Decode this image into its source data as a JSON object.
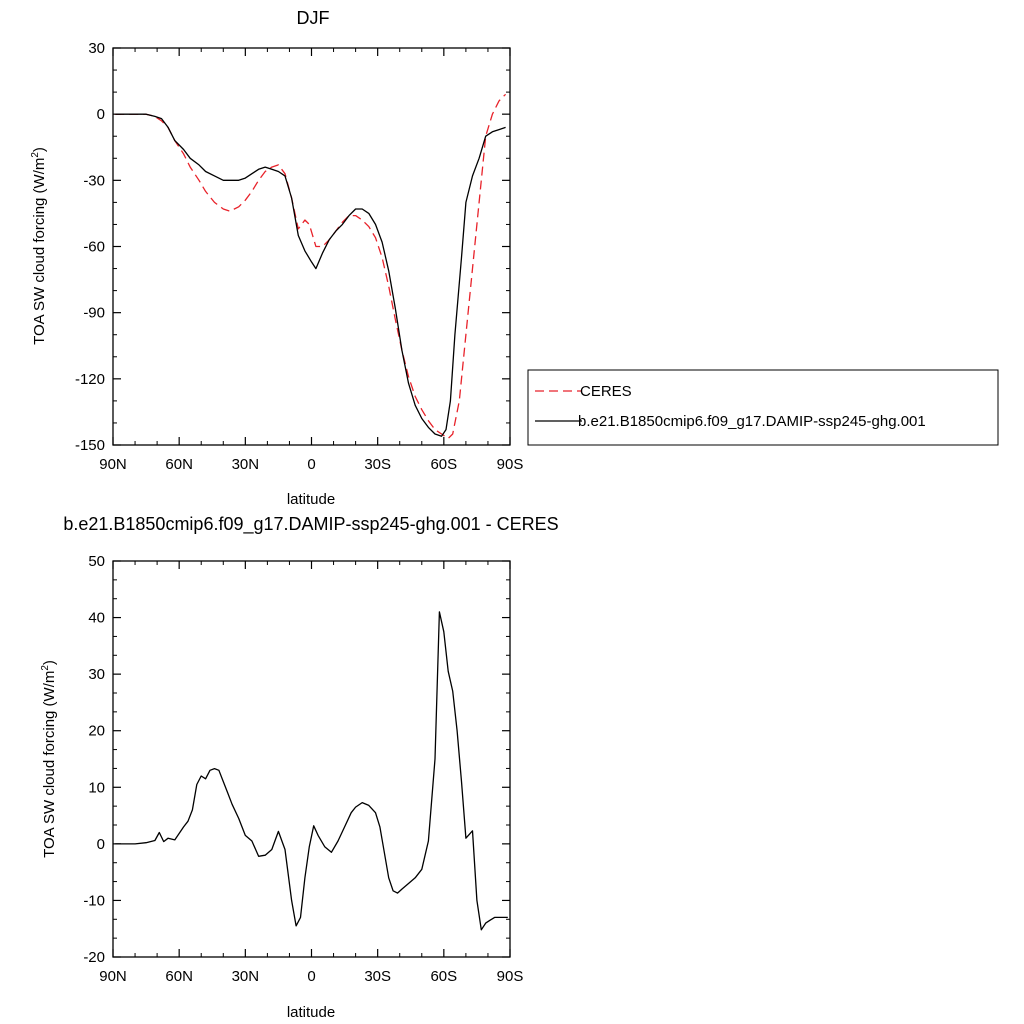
{
  "chart_data": [
    {
      "type": "line",
      "title": "DJF",
      "xlabel": "latitude",
      "ylabel": "TOA SW cloud forcing (W/m",
      "ylabel_sup": "2",
      "ylabel_end": ")",
      "xlim": [
        -90,
        90
      ],
      "ylim": [
        -150,
        30
      ],
      "x_ticks": [
        -90,
        -60,
        -30,
        0,
        30,
        60,
        90
      ],
      "x_tick_labels": [
        "90N",
        "60N",
        "30N",
        "0",
        "30S",
        "60S",
        "90S"
      ],
      "y_ticks": [
        30,
        0,
        -30,
        -60,
        -90,
        -120,
        -150
      ],
      "y_tick_labels": [
        "30",
        "0",
        "-30",
        "-60",
        "-90",
        "-120",
        "-150"
      ],
      "legend_position": "right",
      "series": [
        {
          "name": "CERES",
          "color": "#e8222a",
          "dash": "dashed",
          "x": [
            -89,
            -85,
            -80,
            -75,
            -71,
            -68,
            -65,
            -62,
            -58,
            -55,
            -51,
            -48,
            -44,
            -40,
            -37,
            -33,
            -30,
            -27,
            -24,
            -21,
            -18,
            -15,
            -12,
            -9,
            -6,
            -3,
            -1,
            2,
            5,
            8,
            11,
            14,
            17,
            20,
            23,
            26,
            29,
            32,
            35,
            38,
            41,
            44,
            47,
            50,
            53,
            56,
            59,
            62,
            64,
            67,
            70,
            73,
            76,
            79,
            82,
            85,
            88
          ],
          "y": [
            0,
            0,
            0,
            0,
            -1,
            -3,
            -6,
            -12,
            -18,
            -24,
            -30,
            -35,
            -40,
            -43,
            -44,
            -42,
            -39,
            -35,
            -30,
            -26,
            -24,
            -23,
            -27,
            -38,
            -52,
            -48,
            -50,
            -60,
            -60,
            -57,
            -53,
            -49,
            -46,
            -46,
            -48,
            -51,
            -56,
            -65,
            -78,
            -93,
            -107,
            -119,
            -128,
            -134,
            -139,
            -143,
            -145,
            -147,
            -145,
            -130,
            -100,
            -70,
            -40,
            -10,
            0,
            6,
            9
          ]
        },
        {
          "name": "b.e21.B1850cmip6.f09_g17.DAMIP-ssp245-ghg.001",
          "color": "#000000",
          "dash": "solid",
          "x": [
            -89,
            -85,
            -80,
            -75,
            -71,
            -68,
            -65,
            -62,
            -58,
            -55,
            -51,
            -48,
            -44,
            -40,
            -37,
            -33,
            -30,
            -27,
            -24,
            -21,
            -18,
            -15,
            -12,
            -9,
            -6,
            -3,
            0,
            2,
            5,
            8,
            11,
            14,
            17,
            20,
            23,
            26,
            29,
            32,
            35,
            38,
            41,
            44,
            47,
            50,
            53,
            56,
            59,
            61,
            63,
            65,
            68,
            70,
            73,
            76,
            79,
            82,
            85,
            88
          ],
          "y": [
            0,
            0,
            0,
            0,
            -1,
            -2,
            -6,
            -12,
            -16,
            -20,
            -23,
            -26,
            -28,
            -30,
            -30,
            -30,
            -29,
            -27,
            -25,
            -24,
            -25,
            -26,
            -28,
            -38,
            -55,
            -62,
            -67,
            -70,
            -63,
            -57,
            -53,
            -50,
            -46,
            -43,
            -43,
            -45,
            -50,
            -58,
            -71,
            -88,
            -107,
            -122,
            -132,
            -138,
            -142,
            -145,
            -146,
            -143,
            -130,
            -100,
            -65,
            -40,
            -28,
            -20,
            -10,
            -8,
            -7,
            -6
          ]
        }
      ]
    },
    {
      "type": "line",
      "title": "b.e21.B1850cmip6.f09_g17.DAMIP-ssp245-ghg.001 - CERES",
      "xlabel": "latitude",
      "ylabel": "TOA SW cloud forcing (W/m",
      "ylabel_sup": "2",
      "ylabel_end": ")",
      "xlim": [
        -90,
        90
      ],
      "ylim": [
        -20,
        50
      ],
      "x_ticks": [
        -90,
        -60,
        -30,
        0,
        30,
        60,
        90
      ],
      "x_tick_labels": [
        "90N",
        "60N",
        "30N",
        "0",
        "30S",
        "60S",
        "90S"
      ],
      "y_ticks": [
        50,
        40,
        30,
        20,
        10,
        0,
        -10,
        -20
      ],
      "y_tick_labels": [
        "50",
        "40",
        "30",
        "20",
        "10",
        "0",
        "-10",
        "-20"
      ],
      "series": [
        {
          "color": "#000000",
          "dash": "solid",
          "x": [
            -89,
            -85,
            -80,
            -75,
            -71,
            -69,
            -67,
            -65,
            -62,
            -58,
            -56,
            -54,
            -52,
            -50,
            -48,
            -46,
            -44,
            -42,
            -40,
            -38,
            -36,
            -33,
            -30,
            -27,
            -24,
            -21,
            -18,
            -15,
            -12,
            -9,
            -7,
            -5,
            -3,
            -1,
            1,
            3,
            6,
            9,
            12,
            15,
            18,
            20,
            23,
            26,
            29,
            31,
            33,
            35,
            37,
            39,
            41,
            44,
            47,
            50,
            53,
            56,
            58,
            60,
            62,
            64,
            66,
            68,
            70,
            73,
            75,
            77,
            79,
            81,
            83,
            85,
            87,
            89
          ],
          "y": [
            0,
            0,
            0,
            0.2,
            0.6,
            2,
            0.4,
            1,
            0.7,
            3,
            4,
            6,
            10.5,
            12,
            11.5,
            13,
            13.3,
            13,
            11,
            9,
            7,
            4.5,
            1.5,
            0.5,
            -2.2,
            -2,
            -1,
            2.2,
            -1,
            -10,
            -14.5,
            -13,
            -6,
            -0.5,
            3.2,
            1.5,
            -0.5,
            -1.5,
            0.5,
            3,
            5.5,
            6.5,
            7.3,
            6.8,
            5.5,
            3,
            -1.5,
            -6,
            -8.3,
            -8.7,
            -8,
            -7,
            -6,
            -4.5,
            0.5,
            15,
            41,
            37.5,
            30.5,
            27,
            20,
            11,
            1,
            2.3,
            -10,
            -15.2,
            -14,
            -13.5,
            -13,
            -13,
            -13,
            -13
          ]
        }
      ]
    }
  ]
}
